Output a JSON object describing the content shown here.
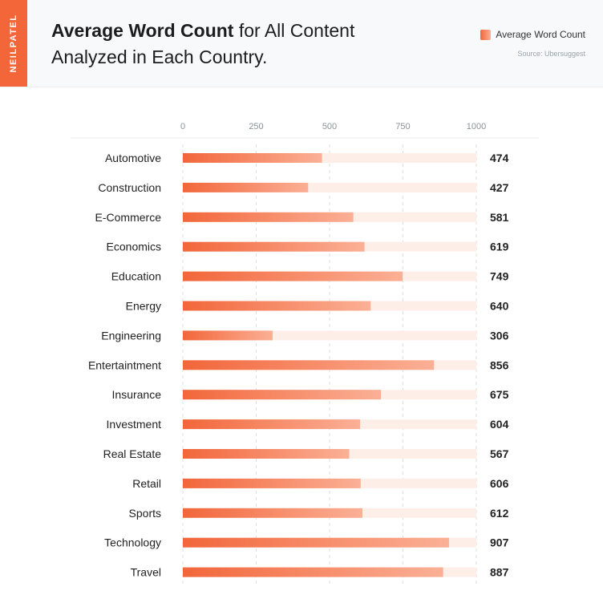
{
  "brand": "NEILPATEL",
  "title_bold": "Average Word Count",
  "title_rest": " for All Content Analyzed in Each Country.",
  "source": "Source: Ubersuggest",
  "colors": {
    "accent": "#f2663a",
    "bar_light": "#fbb096",
    "track": "#fdeee8",
    "grid": "#dddddd"
  },
  "chart_data": {
    "type": "bar",
    "orientation": "horizontal",
    "categories": [
      "Automotive",
      "Construction",
      "E-Commerce",
      "Economics",
      "Education",
      "Energy",
      "Engineering",
      "Entertaintment",
      "Insurance",
      "Investment",
      "Real Estate",
      "Retail",
      "Sports",
      "Technology",
      "Travel"
    ],
    "series": [
      {
        "name": "Average Word Count",
        "values": [
          474,
          427,
          581,
          619,
          749,
          640,
          306,
          856,
          675,
          604,
          567,
          606,
          612,
          907,
          887
        ]
      }
    ],
    "xlim": [
      0,
      1000
    ],
    "xticks": [
      0,
      250,
      500,
      750,
      1000
    ],
    "grid": true,
    "legend": "top-right"
  }
}
